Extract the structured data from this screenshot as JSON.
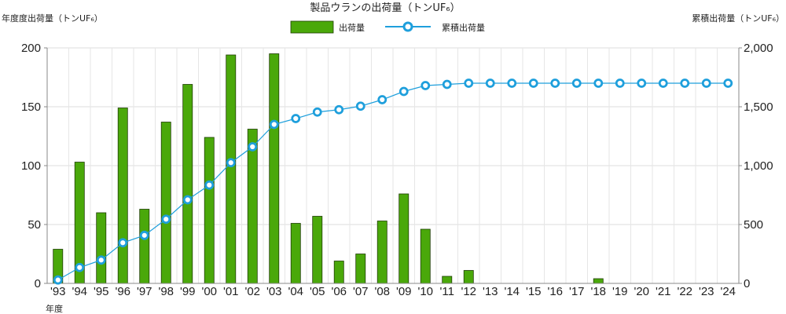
{
  "chart_data": {
    "type": "bar",
    "title": "製品ウランの出荷量（トンUF₆）",
    "ylabel_left": "年度度出荷量（トンUF₆）",
    "ylabel_right": "累積出荷量（トンUF₆）",
    "xlabel": "年度",
    "legend_position": "top-center",
    "grid": true,
    "categories": [
      "'93",
      "'94",
      "'95",
      "'96",
      "'97",
      "'98",
      "'99",
      "'00",
      "'01",
      "'02",
      "'03",
      "'04",
      "'05",
      "'06",
      "'07",
      "'08",
      "'09",
      "'10",
      "'11",
      "'12",
      "'13",
      "'14",
      "'15",
      "'16",
      "'17",
      "'18",
      "'19",
      "'20",
      "'21",
      "'22",
      "'23",
      "'24"
    ],
    "ylim_left": [
      0,
      200
    ],
    "yticks_left": [
      "0",
      "50",
      "100",
      "150",
      "200"
    ],
    "ylim_right": [
      0,
      2000
    ],
    "yticks_right": [
      "0",
      "500",
      "1,000",
      "1,500",
      "2,000"
    ],
    "series": [
      {
        "name": "出荷量",
        "kind": "bar",
        "axis": "left",
        "color": "#4aa80a",
        "values": [
          29,
          103,
          60,
          149,
          63,
          137,
          169,
          124,
          194,
          131,
          195,
          51,
          57,
          19,
          25,
          53,
          76,
          46,
          6,
          11,
          0,
          0,
          0,
          0,
          0,
          4,
          0,
          0,
          0,
          0,
          0,
          0
        ]
      },
      {
        "name": "累積出荷量",
        "kind": "line",
        "axis": "right",
        "color": "#1e9fdc",
        "values": [
          29,
          135,
          198,
          345,
          408,
          545,
          710,
          835,
          1025,
          1160,
          1350,
          1400,
          1455,
          1475,
          1505,
          1560,
          1630,
          1680,
          1690,
          1700,
          1700,
          1700,
          1700,
          1700,
          1700,
          1700,
          1700,
          1700,
          1700,
          1700,
          1700,
          1700
        ]
      }
    ]
  }
}
